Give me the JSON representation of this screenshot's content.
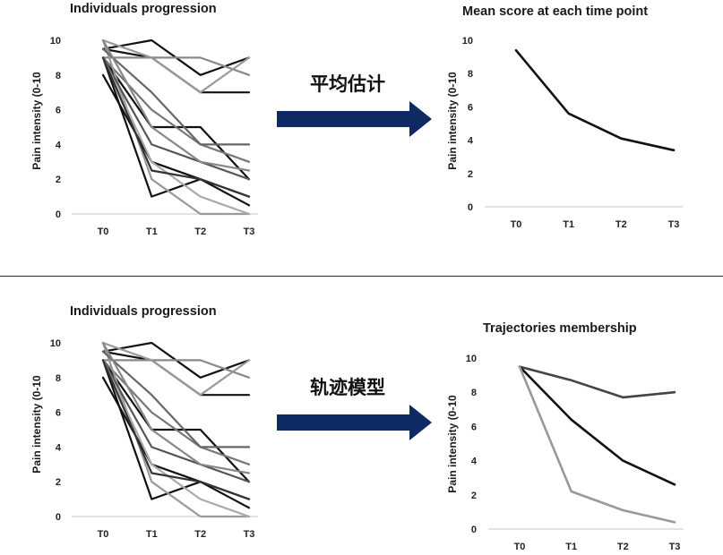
{
  "colors": {
    "arrow": "#0d2a62",
    "ink": "#111111",
    "axis": "#d0d0d0"
  },
  "chart_data": [
    {
      "type": "line",
      "title": "Individuals progression",
      "ylabel": "Pain intensity (0-10",
      "xlabel": "",
      "categories": [
        "T0",
        "T1",
        "T2",
        "T3"
      ],
      "ylim": [
        0,
        10
      ],
      "yticks": [
        0,
        2,
        4,
        6,
        8,
        10
      ],
      "grid": false,
      "series": [
        {
          "values": [
            9.5,
            10,
            8,
            9
          ],
          "color": "#111111"
        },
        {
          "values": [
            9.5,
            9,
            7,
            7
          ],
          "color": "#111111"
        },
        {
          "values": [
            9,
            9,
            9,
            8
          ],
          "color": "#888888"
        },
        {
          "values": [
            10,
            9,
            7,
            9
          ],
          "color": "#999999"
        },
        {
          "values": [
            9,
            5,
            5,
            2
          ],
          "color": "#111111"
        },
        {
          "values": [
            9,
            6,
            4,
            3
          ],
          "color": "#777777"
        },
        {
          "values": [
            8,
            3,
            2,
            1
          ],
          "color": "#111111"
        },
        {
          "values": [
            9,
            1,
            2,
            0.5
          ],
          "color": "#111111"
        },
        {
          "values": [
            10,
            2,
            0,
            0
          ],
          "color": "#999999"
        },
        {
          "values": [
            9,
            4,
            3,
            2
          ],
          "color": "#555555"
        },
        {
          "values": [
            9.5,
            7,
            4,
            4
          ],
          "color": "#666666"
        },
        {
          "values": [
            9,
            3,
            1,
            0
          ],
          "color": "#aaaaaa"
        },
        {
          "values": [
            10,
            5,
            3,
            2.5
          ],
          "color": "#888888"
        },
        {
          "values": [
            9,
            2.5,
            2,
            1
          ],
          "color": "#333333"
        }
      ]
    },
    {
      "type": "line",
      "title": "Mean score at each time point",
      "ylabel": "Pain intensity (0-10",
      "xlabel": "",
      "categories": [
        "T0",
        "T1",
        "T2",
        "T3"
      ],
      "ylim": [
        0,
        10
      ],
      "yticks": [
        0,
        2,
        4,
        6,
        8,
        10
      ],
      "grid": false,
      "series": [
        {
          "values": [
            9.4,
            5.6,
            4.1,
            3.4
          ],
          "color": "#111111"
        }
      ]
    },
    {
      "type": "line",
      "title": "Individuals progression",
      "ylabel": "Pain intensity (0-10",
      "xlabel": "",
      "categories": [
        "T0",
        "T1",
        "T2",
        "T3"
      ],
      "ylim": [
        0,
        10
      ],
      "yticks": [
        0,
        2,
        4,
        6,
        8,
        10
      ],
      "grid": false,
      "series": [
        {
          "values": [
            9.5,
            10,
            8,
            9
          ],
          "color": "#111111"
        },
        {
          "values": [
            9.5,
            9,
            7,
            7
          ],
          "color": "#111111"
        },
        {
          "values": [
            9,
            9,
            9,
            8
          ],
          "color": "#888888"
        },
        {
          "values": [
            10,
            9,
            7,
            9
          ],
          "color": "#999999"
        },
        {
          "values": [
            9,
            5,
            5,
            2
          ],
          "color": "#111111"
        },
        {
          "values": [
            9,
            6,
            4,
            3
          ],
          "color": "#777777"
        },
        {
          "values": [
            8,
            3,
            2,
            1
          ],
          "color": "#111111"
        },
        {
          "values": [
            9,
            1,
            2,
            0.5
          ],
          "color": "#111111"
        },
        {
          "values": [
            10,
            2,
            0,
            0
          ],
          "color": "#999999"
        },
        {
          "values": [
            9,
            4,
            3,
            2
          ],
          "color": "#555555"
        },
        {
          "values": [
            9.5,
            7,
            4,
            4
          ],
          "color": "#666666"
        },
        {
          "values": [
            9,
            3,
            1,
            0
          ],
          "color": "#aaaaaa"
        },
        {
          "values": [
            10,
            5,
            3,
            2.5
          ],
          "color": "#888888"
        },
        {
          "values": [
            9,
            2.5,
            2,
            1
          ],
          "color": "#333333"
        }
      ]
    },
    {
      "type": "line",
      "title": "Trajectories membership",
      "ylabel": "Pain intensity (0-10",
      "xlabel": "",
      "categories": [
        "T0",
        "T1",
        "T2",
        "T3"
      ],
      "ylim": [
        0,
        10
      ],
      "yticks": [
        0,
        2,
        4,
        6,
        8,
        10
      ],
      "grid": false,
      "series": [
        {
          "values": [
            9.5,
            8.7,
            7.7,
            8.0
          ],
          "color": "#444444"
        },
        {
          "values": [
            9.5,
            6.4,
            4.0,
            2.6
          ],
          "color": "#111111"
        },
        {
          "values": [
            9.5,
            2.2,
            1.1,
            0.4
          ],
          "color": "#999999"
        }
      ]
    }
  ],
  "arrows": [
    {
      "label": "平均估计"
    },
    {
      "label": "轨迹模型"
    }
  ]
}
